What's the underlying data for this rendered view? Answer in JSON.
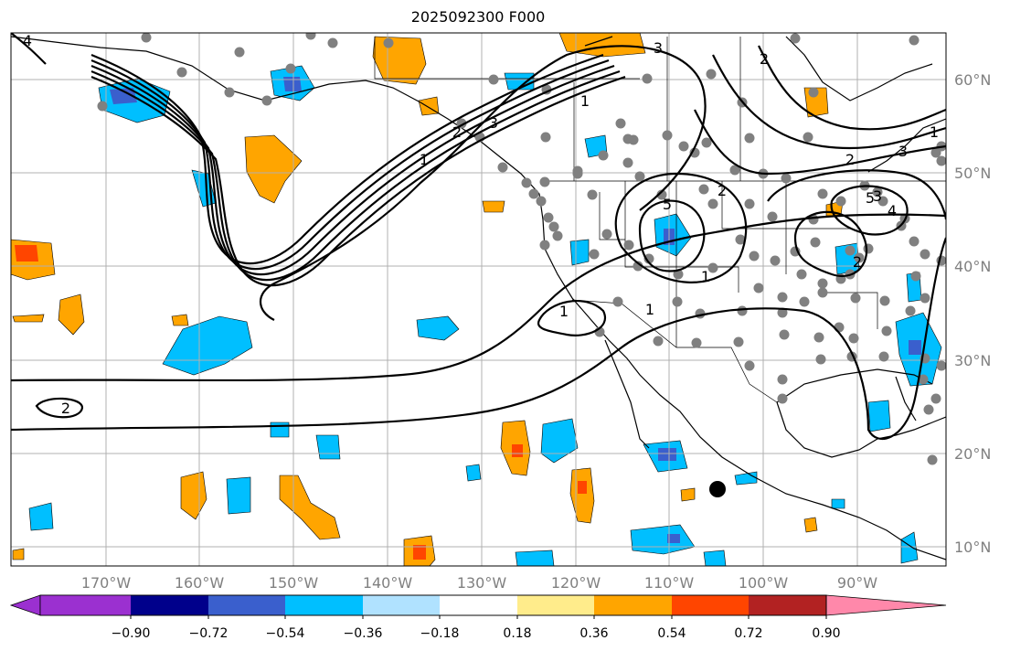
{
  "title": "2025092300 F000",
  "map": {
    "longitude_labels": [
      "170°W",
      "160°W",
      "150°W",
      "140°W",
      "130°W",
      "120°W",
      "110°W",
      "100°W",
      "90°W"
    ],
    "latitude_labels": [
      "60°N",
      "50°N",
      "40°N",
      "30°N",
      "20°N",
      "10°N"
    ],
    "contour_labels": [
      "4",
      "1",
      "2",
      "3",
      "1",
      "3",
      "2",
      "5",
      "2",
      "1",
      "1",
      "1",
      "2",
      "3",
      "1",
      "2",
      "3",
      "5",
      "4",
      "2"
    ],
    "colors": {
      "grid": "#b0b0b0",
      "contour": "#000000",
      "station_dot": "#808080",
      "marker": "#000000"
    }
  },
  "colorbar": {
    "tick_labels": [
      "−0.90",
      "−0.72",
      "−0.54",
      "−0.36",
      "−0.18",
      "0.18",
      "0.36",
      "0.54",
      "0.72",
      "0.90"
    ],
    "colors": [
      "#9b30d0",
      "#00008b",
      "#3a5fcd",
      "#00bfff",
      "#b0e2ff",
      "#ffffff",
      "#ffec8b",
      "#ffa500",
      "#ff4500",
      "#b22222",
      "#ff88aa"
    ]
  }
}
